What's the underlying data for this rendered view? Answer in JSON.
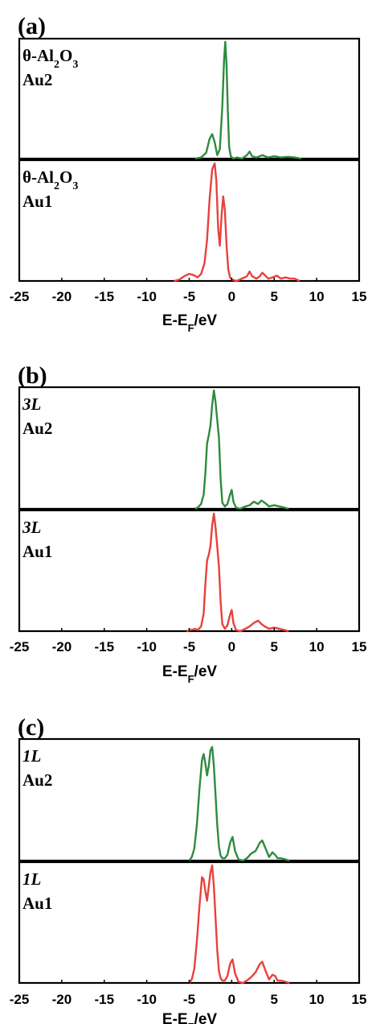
{
  "figure": {
    "panels": [
      {
        "label": "(a)",
        "xlabel": "E-E",
        "xlabel_sub": "F",
        "xlabel_suffix": "/eV",
        "subplots": [
          {
            "line1": {
              "pre": "θ-Al",
              "sub1": "2",
              "mid": "O",
              "sub2": "3",
              "italic": false
            },
            "line2": "Au2",
            "color": "#2e8b3e"
          },
          {
            "line1": {
              "pre": "θ-Al",
              "sub1": "2",
              "mid": "O",
              "sub2": "3",
              "italic": false
            },
            "line2": "Au1",
            "color": "#e8413c"
          }
        ]
      },
      {
        "label": "(b)",
        "xlabel": "E-E",
        "xlabel_sub": "F",
        "xlabel_suffix": "/eV",
        "subplots": [
          {
            "line1": {
              "pre": "3L",
              "italic": true
            },
            "line2": "Au2",
            "color": "#2e8b3e"
          },
          {
            "line1": {
              "pre": "3L",
              "italic": true
            },
            "line2": "Au1",
            "color": "#e8413c"
          }
        ]
      },
      {
        "label": "(c)",
        "xlabel": "E-E",
        "xlabel_sub": "F",
        "xlabel_suffix": "/eV",
        "subplots": [
          {
            "line1": {
              "pre": "1L",
              "italic": true
            },
            "line2": "Au2",
            "color": "#2e8b3e"
          },
          {
            "line1": {
              "pre": "1L",
              "italic": true
            },
            "line2": "Au1",
            "color": "#e8413c"
          }
        ]
      }
    ]
  },
  "chart_data": [
    {
      "type": "line",
      "title": "(a)",
      "xlabel": "E-EF/eV",
      "xlim": [
        -25,
        15
      ],
      "xticks": [
        "-25",
        "-20",
        "-15",
        "-10",
        "-5",
        "0",
        "5",
        "10",
        "15"
      ],
      "series": [
        {
          "name": "Au2",
          "color": "#2e8b3e",
          "x": [
            -4.3,
            -3.6,
            -3.0,
            -2.6,
            -2.3,
            -2.0,
            -1.7,
            -1.4,
            -1.1,
            -0.9,
            -0.75,
            -0.6,
            -0.45,
            -0.3,
            -0.1,
            0.2,
            0.6,
            1.2,
            1.8,
            2.1,
            2.4,
            2.9,
            3.6,
            4.3,
            5.0,
            5.8,
            6.6,
            7.4,
            8.2
          ],
          "y": [
            0.0,
            0.01,
            0.05,
            0.17,
            0.21,
            0.14,
            0.03,
            0.08,
            0.45,
            0.85,
            1.0,
            0.8,
            0.4,
            0.1,
            0.02,
            0.0,
            0.01,
            0.0,
            0.03,
            0.06,
            0.02,
            0.01,
            0.03,
            0.01,
            0.02,
            0.01,
            0.015,
            0.01,
            0.0
          ]
        },
        {
          "name": "Au1",
          "color": "#e8413c",
          "x": [
            -6.8,
            -6.2,
            -5.6,
            -5.0,
            -4.5,
            -4.0,
            -3.6,
            -3.2,
            -2.9,
            -2.6,
            -2.3,
            -2.0,
            -1.8,
            -1.6,
            -1.4,
            -1.2,
            -1.0,
            -0.8,
            -0.6,
            -0.4,
            -0.2,
            0.1,
            0.6,
            1.2,
            1.8,
            2.1,
            2.4,
            2.9,
            3.3,
            3.6,
            3.9,
            4.3,
            4.8,
            5.3,
            5.8,
            6.3,
            6.9,
            7.4,
            8.0
          ],
          "y": [
            0.0,
            0.01,
            0.04,
            0.06,
            0.05,
            0.03,
            0.06,
            0.15,
            0.35,
            0.7,
            0.95,
            1.0,
            0.85,
            0.45,
            0.3,
            0.55,
            0.72,
            0.6,
            0.3,
            0.1,
            0.03,
            0.01,
            0.0,
            0.02,
            0.04,
            0.08,
            0.04,
            0.02,
            0.04,
            0.07,
            0.05,
            0.02,
            0.03,
            0.045,
            0.02,
            0.03,
            0.02,
            0.02,
            0.0
          ]
        }
      ]
    },
    {
      "type": "line",
      "title": "(b)",
      "xlabel": "E-EF/eV",
      "xlim": [
        -25,
        15
      ],
      "xticks": [
        "-25",
        "-20",
        "-15",
        "-10",
        "-5",
        "0",
        "5",
        "10",
        "15"
      ],
      "series": [
        {
          "name": "Au2",
          "color": "#2e8b3e",
          "x": [
            -4.3,
            -4.0,
            -3.6,
            -3.3,
            -3.1,
            -2.9,
            -2.7,
            -2.5,
            -2.3,
            -2.1,
            -1.9,
            -1.7,
            -1.5,
            -1.3,
            -1.1,
            -0.8,
            -0.5,
            -0.2,
            0.0,
            0.2,
            0.5,
            1.0,
            1.6,
            2.1,
            2.6,
            3.1,
            3.5,
            3.9,
            4.4,
            5.0,
            5.6,
            6.2,
            6.7
          ],
          "y": [
            0.0,
            0.01,
            0.04,
            0.12,
            0.3,
            0.55,
            0.62,
            0.7,
            0.88,
            1.0,
            0.9,
            0.75,
            0.6,
            0.25,
            0.05,
            0.02,
            0.04,
            0.12,
            0.16,
            0.06,
            0.01,
            0.0,
            0.02,
            0.03,
            0.06,
            0.04,
            0.07,
            0.05,
            0.02,
            0.03,
            0.02,
            0.01,
            0.0
          ]
        },
        {
          "name": "Au1",
          "color": "#e8413c",
          "x": [
            -5.3,
            -4.8,
            -4.3,
            -4.0,
            -3.6,
            -3.3,
            -3.1,
            -2.9,
            -2.7,
            -2.5,
            -2.3,
            -2.1,
            -1.9,
            -1.7,
            -1.5,
            -1.3,
            -1.1,
            -0.8,
            -0.5,
            -0.2,
            0.0,
            0.2,
            0.5,
            1.0,
            1.6,
            2.1,
            2.6,
            3.1,
            3.5,
            3.9,
            4.4,
            5.0,
            5.6,
            6.2,
            6.7
          ],
          "y": [
            0.0,
            0.01,
            0.02,
            0.01,
            0.04,
            0.15,
            0.4,
            0.6,
            0.65,
            0.72,
            0.9,
            1.0,
            0.88,
            0.72,
            0.55,
            0.25,
            0.06,
            0.02,
            0.05,
            0.14,
            0.18,
            0.07,
            0.01,
            0.0,
            0.02,
            0.04,
            0.07,
            0.09,
            0.06,
            0.04,
            0.02,
            0.03,
            0.02,
            0.01,
            0.0
          ]
        }
      ]
    },
    {
      "type": "line",
      "title": "(c)",
      "xlabel": "E-EF/eV",
      "xlim": [
        -25,
        15
      ],
      "xticks": [
        "-25",
        "-20",
        "-15",
        "-10",
        "-5",
        "0",
        "5",
        "10",
        "15"
      ],
      "series": [
        {
          "name": "Au2",
          "color": "#2e8b3e",
          "x": [
            -5.0,
            -4.7,
            -4.4,
            -4.1,
            -3.8,
            -3.5,
            -3.3,
            -3.1,
            -2.9,
            -2.7,
            -2.5,
            -2.3,
            -2.1,
            -1.9,
            -1.7,
            -1.5,
            -1.3,
            -1.1,
            -0.8,
            -0.5,
            -0.2,
            0.1,
            0.4,
            0.8,
            1.3,
            1.8,
            2.3,
            2.8,
            3.3,
            3.6,
            4.0,
            4.4,
            4.8,
            5.1,
            5.4,
            5.8,
            6.3,
            6.8
          ],
          "y": [
            0.0,
            0.03,
            0.1,
            0.3,
            0.6,
            0.85,
            0.9,
            0.82,
            0.72,
            0.8,
            0.93,
            0.96,
            0.8,
            0.55,
            0.3,
            0.12,
            0.04,
            0.02,
            0.02,
            0.05,
            0.15,
            0.2,
            0.08,
            0.01,
            0.0,
            0.02,
            0.06,
            0.08,
            0.15,
            0.17,
            0.1,
            0.03,
            0.07,
            0.05,
            0.02,
            0.02,
            0.01,
            0.0
          ]
        },
        {
          "name": "Au1",
          "color": "#e8413c",
          "x": [
            -5.0,
            -4.7,
            -4.4,
            -4.1,
            -3.8,
            -3.5,
            -3.3,
            -3.1,
            -2.9,
            -2.7,
            -2.5,
            -2.3,
            -2.1,
            -1.9,
            -1.7,
            -1.5,
            -1.3,
            -1.1,
            -0.8,
            -0.5,
            -0.2,
            0.1,
            0.4,
            0.8,
            1.3,
            1.8,
            2.3,
            2.8,
            3.3,
            3.6,
            4.0,
            4.4,
            4.8,
            5.1,
            5.4,
            5.8,
            6.3,
            6.8
          ],
          "y": [
            0.0,
            0.03,
            0.12,
            0.35,
            0.65,
            0.9,
            0.88,
            0.78,
            0.7,
            0.82,
            0.94,
            1.0,
            0.82,
            0.55,
            0.28,
            0.1,
            0.04,
            0.02,
            0.02,
            0.06,
            0.16,
            0.2,
            0.08,
            0.01,
            0.0,
            0.02,
            0.05,
            0.09,
            0.16,
            0.18,
            0.1,
            0.03,
            0.07,
            0.06,
            0.02,
            0.02,
            0.01,
            0.0
          ]
        }
      ]
    }
  ]
}
